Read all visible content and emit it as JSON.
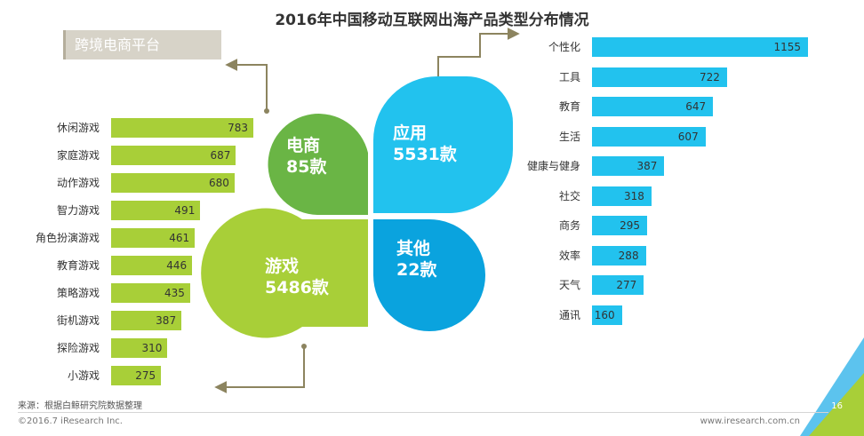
{
  "title": "2016年中国移动互联网出海产品类型分布情况",
  "tag_label": "跨境电商平台",
  "petals": {
    "ecommerce": {
      "name": "电商",
      "count": "85款"
    },
    "app": {
      "name": "应用",
      "count": "5531款"
    },
    "game": {
      "name": "游戏",
      "count": "5486款"
    },
    "other": {
      "name": "其他",
      "count": "22款"
    }
  },
  "colors": {
    "ecommerce": "#6ab545",
    "app": "#22c2ee",
    "game": "#a8cf38",
    "other": "#0aa3de",
    "arrow": "#8c845f"
  },
  "chart_data": [
    {
      "type": "bar",
      "orientation": "horizontal",
      "categories": [
        "休闲游戏",
        "家庭游戏",
        "动作游戏",
        "智力游戏",
        "角色扮演游戏",
        "教育游戏",
        "策略游戏",
        "街机游戏",
        "探险游戏",
        "小游戏"
      ],
      "values": [
        783,
        687,
        680,
        491,
        461,
        446,
        435,
        387,
        310,
        275
      ],
      "xlim": [
        0,
        800
      ]
    },
    {
      "type": "bar",
      "orientation": "horizontal",
      "categories": [
        "个性化",
        "工具",
        "教育",
        "生活",
        "健康与健身",
        "社交",
        "商务",
        "效率",
        "天气",
        "通讯"
      ],
      "values": [
        1155,
        722,
        647,
        607,
        387,
        318,
        295,
        288,
        277,
        160
      ],
      "xlim": [
        0,
        1200
      ]
    }
  ],
  "footer": {
    "source": "来源：根据白鲸研究院数据整理",
    "copyright": "©2016.7 iResearch Inc.",
    "site": "www.iresearch.com.cn",
    "page": "16"
  }
}
